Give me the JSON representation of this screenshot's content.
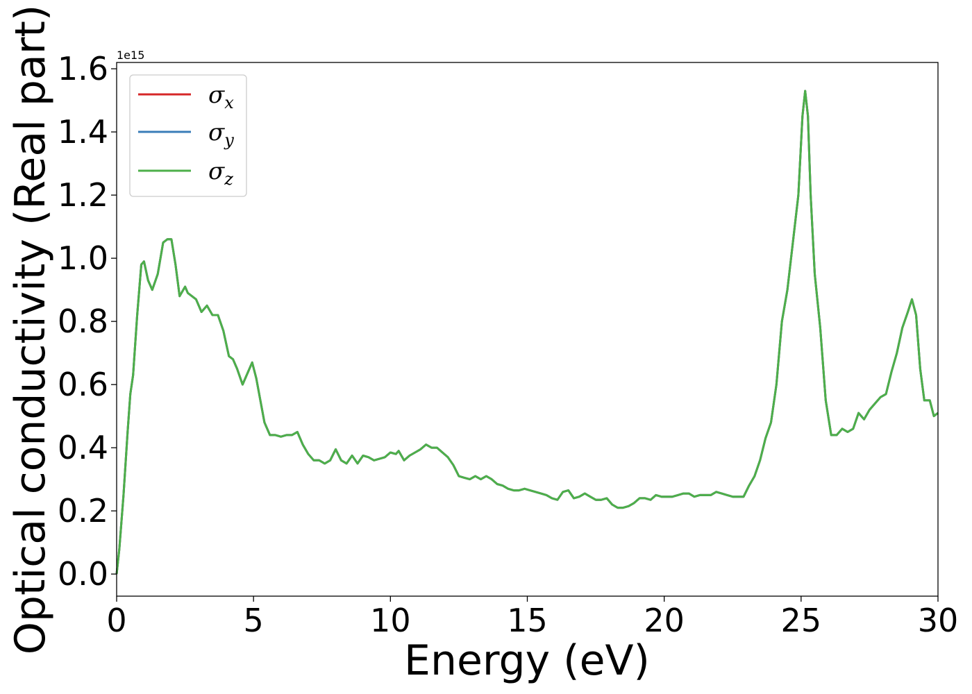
{
  "chart_data": {
    "type": "line",
    "xlabel": "Energy (eV)",
    "ylabel": "Optical conductivity (Real part)",
    "y_offset_label": "1e15",
    "xlim": [
      0,
      30
    ],
    "ylim": [
      -0.07,
      1.62
    ],
    "x_ticks": [
      0,
      5,
      10,
      15,
      20,
      25,
      30
    ],
    "x_tick_labels": [
      "0",
      "5",
      "10",
      "15",
      "20",
      "25",
      "30"
    ],
    "y_ticks": [
      0.0,
      0.2,
      0.4,
      0.6,
      0.8,
      1.0,
      1.2,
      1.4,
      1.6
    ],
    "y_tick_labels": [
      "0.0",
      "0.2",
      "0.4",
      "0.6",
      "0.8",
      "1.0",
      "1.2",
      "1.4",
      "1.6"
    ],
    "grid": false,
    "legend_position": "top-left",
    "series": [
      {
        "name": "σ",
        "sub": "x",
        "color": "#d62728"
      },
      {
        "name": "σ",
        "sub": "y",
        "color": "#3a7db8"
      },
      {
        "name": "σ",
        "sub": "z",
        "color": "#4daf4a"
      }
    ],
    "x": [
      0,
      0.1,
      0.25,
      0.4,
      0.5,
      0.6,
      0.75,
      0.9,
      1.0,
      1.15,
      1.3,
      1.5,
      1.7,
      1.85,
      2.0,
      2.15,
      2.3,
      2.5,
      2.6,
      2.75,
      2.9,
      3.1,
      3.3,
      3.5,
      3.7,
      3.9,
      4.1,
      4.25,
      4.4,
      4.6,
      4.8,
      4.95,
      5.1,
      5.25,
      5.4,
      5.6,
      5.8,
      6.0,
      6.2,
      6.4,
      6.6,
      6.8,
      7.0,
      7.2,
      7.4,
      7.6,
      7.8,
      8.0,
      8.2,
      8.4,
      8.6,
      8.8,
      9.0,
      9.2,
      9.4,
      9.6,
      9.8,
      10.0,
      10.2,
      10.3,
      10.5,
      10.7,
      10.9,
      11.1,
      11.3,
      11.5,
      11.7,
      11.9,
      12.1,
      12.3,
      12.5,
      12.7,
      12.9,
      13.1,
      13.3,
      13.5,
      13.7,
      13.9,
      14.1,
      14.3,
      14.5,
      14.7,
      14.9,
      15.1,
      15.3,
      15.5,
      15.7,
      15.9,
      16.1,
      16.3,
      16.5,
      16.7,
      16.9,
      17.1,
      17.3,
      17.5,
      17.7,
      17.9,
      18.1,
      18.3,
      18.5,
      18.7,
      18.9,
      19.1,
      19.3,
      19.5,
      19.7,
      19.9,
      20.1,
      20.3,
      20.5,
      20.7,
      20.9,
      21.1,
      21.3,
      21.5,
      21.7,
      21.9,
      22.1,
      22.3,
      22.5,
      22.7,
      22.9,
      23.1,
      23.3,
      23.5,
      23.7,
      23.9,
      24.1,
      24.3,
      24.5,
      24.7,
      24.9,
      25.05,
      25.15,
      25.25,
      25.35,
      25.5,
      25.7,
      25.9,
      26.1,
      26.3,
      26.5,
      26.7,
      26.9,
      27.1,
      27.3,
      27.5,
      27.7,
      27.9,
      28.1,
      28.3,
      28.5,
      28.7,
      28.9,
      29.05,
      29.2,
      29.35,
      29.5,
      29.7,
      29.85,
      30.0
    ],
    "y": [
      0.0,
      0.08,
      0.25,
      0.45,
      0.57,
      0.63,
      0.82,
      0.98,
      0.99,
      0.93,
      0.9,
      0.95,
      1.05,
      1.06,
      1.06,
      0.98,
      0.88,
      0.91,
      0.89,
      0.88,
      0.87,
      0.83,
      0.85,
      0.82,
      0.82,
      0.77,
      0.69,
      0.68,
      0.65,
      0.6,
      0.64,
      0.67,
      0.62,
      0.55,
      0.48,
      0.44,
      0.44,
      0.435,
      0.44,
      0.44,
      0.45,
      0.41,
      0.38,
      0.36,
      0.36,
      0.35,
      0.36,
      0.395,
      0.36,
      0.35,
      0.375,
      0.35,
      0.375,
      0.37,
      0.36,
      0.365,
      0.37,
      0.385,
      0.38,
      0.39,
      0.36,
      0.375,
      0.385,
      0.395,
      0.41,
      0.4,
      0.4,
      0.385,
      0.37,
      0.345,
      0.31,
      0.305,
      0.3,
      0.31,
      0.3,
      0.31,
      0.3,
      0.285,
      0.28,
      0.27,
      0.265,
      0.265,
      0.27,
      0.265,
      0.26,
      0.255,
      0.25,
      0.24,
      0.235,
      0.26,
      0.265,
      0.24,
      0.245,
      0.255,
      0.245,
      0.235,
      0.235,
      0.24,
      0.22,
      0.21,
      0.21,
      0.215,
      0.225,
      0.24,
      0.24,
      0.235,
      0.25,
      0.245,
      0.245,
      0.245,
      0.25,
      0.255,
      0.255,
      0.245,
      0.25,
      0.25,
      0.25,
      0.26,
      0.255,
      0.25,
      0.245,
      0.245,
      0.245,
      0.28,
      0.31,
      0.36,
      0.43,
      0.48,
      0.6,
      0.8,
      0.9,
      1.05,
      1.2,
      1.45,
      1.53,
      1.45,
      1.2,
      0.95,
      0.78,
      0.55,
      0.44,
      0.44,
      0.46,
      0.45,
      0.46,
      0.51,
      0.49,
      0.52,
      0.54,
      0.56,
      0.57,
      0.64,
      0.7,
      0.78,
      0.83,
      0.87,
      0.82,
      0.65,
      0.55,
      0.55,
      0.5,
      0.51
    ]
  }
}
